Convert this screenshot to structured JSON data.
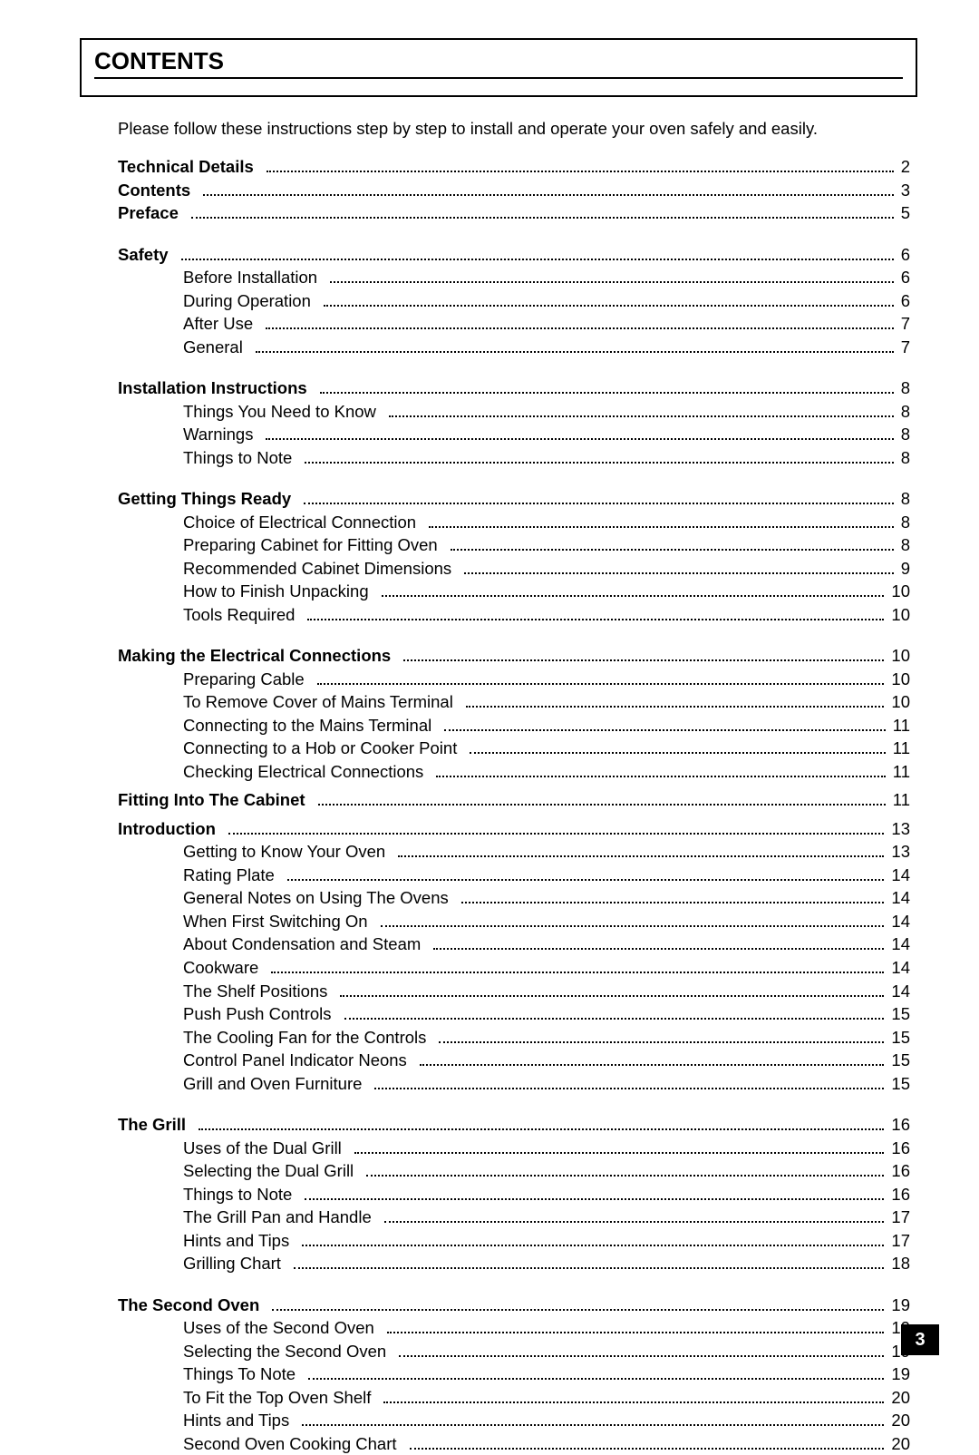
{
  "title": "CONTENTS",
  "intro": "Please follow these instructions step by step to install and operate your oven safely and easily.",
  "page_number": "3",
  "entries": [
    {
      "label": "Technical Details",
      "page": "2",
      "bold": true,
      "sub": false
    },
    {
      "label": "Contents",
      "page": "3",
      "bold": true,
      "sub": false
    },
    {
      "label": "Preface",
      "page": "5",
      "bold": true,
      "sub": false
    },
    {
      "gap": true
    },
    {
      "label": "Safety",
      "page": "6",
      "bold": true,
      "sub": false
    },
    {
      "label": "Before Installation",
      "page": "6",
      "bold": false,
      "sub": true
    },
    {
      "label": "During Operation",
      "page": "6",
      "bold": false,
      "sub": true
    },
    {
      "label": "After Use",
      "page": "7",
      "bold": false,
      "sub": true
    },
    {
      "label": "General",
      "page": "7",
      "bold": false,
      "sub": true
    },
    {
      "gap": true
    },
    {
      "label": "Installation Instructions",
      "page": "8",
      "bold": true,
      "sub": false
    },
    {
      "label": "Things You Need to Know",
      "page": "8",
      "bold": false,
      "sub": true
    },
    {
      "label": "Warnings",
      "page": "8",
      "bold": false,
      "sub": true
    },
    {
      "label": "Things to Note",
      "page": "8",
      "bold": false,
      "sub": true
    },
    {
      "gap": true
    },
    {
      "label": "Getting Things Ready",
      "page": "8",
      "bold": true,
      "sub": false
    },
    {
      "label": "Choice of Electrical Connection",
      "page": "8",
      "bold": false,
      "sub": true
    },
    {
      "label": "Preparing Cabinet for Fitting Oven",
      "page": "8",
      "bold": false,
      "sub": true
    },
    {
      "label": "Recommended Cabinet Dimensions",
      "page": "9",
      "bold": false,
      "sub": true
    },
    {
      "label": "How to Finish Unpacking",
      "page": "10",
      "bold": false,
      "sub": true
    },
    {
      "label": "Tools Required",
      "page": "10",
      "bold": false,
      "sub": true
    },
    {
      "gap": true
    },
    {
      "label": "Making the Electrical Connections",
      "page": "10",
      "bold": true,
      "sub": false
    },
    {
      "label": "Preparing Cable",
      "page": "10",
      "bold": false,
      "sub": true
    },
    {
      "label": "To Remove Cover of Mains Terminal",
      "page": "10",
      "bold": false,
      "sub": true
    },
    {
      "label": "Connecting to the Mains Terminal",
      "page": "11",
      "bold": false,
      "sub": true
    },
    {
      "label": "Connecting to a Hob or Cooker Point",
      "page": "11",
      "bold": false,
      "sub": true
    },
    {
      "label": "Checking Electrical Connections",
      "page": "11",
      "bold": false,
      "sub": true
    },
    {
      "smallgap": true
    },
    {
      "label": "Fitting Into The Cabinet",
      "page": "11",
      "bold": true,
      "sub": false
    },
    {
      "smallgap": true
    },
    {
      "label": "Introduction",
      "page": "13",
      "bold": true,
      "sub": false
    },
    {
      "label": "Getting to Know Your Oven",
      "page": "13",
      "bold": false,
      "sub": true
    },
    {
      "label": "Rating Plate",
      "page": "14",
      "bold": false,
      "sub": true
    },
    {
      "label": "General Notes on Using The Ovens",
      "page": "14",
      "bold": false,
      "sub": true
    },
    {
      "label": "When First Switching On",
      "page": "14",
      "bold": false,
      "sub": true
    },
    {
      "label": "About Condensation and Steam",
      "page": "14",
      "bold": false,
      "sub": true
    },
    {
      "label": "Cookware",
      "page": "14",
      "bold": false,
      "sub": true
    },
    {
      "label": "The Shelf Positions",
      "page": "14",
      "bold": false,
      "sub": true
    },
    {
      "label": "Push Push Controls",
      "page": "15",
      "bold": false,
      "sub": true
    },
    {
      "label": "The Cooling Fan for the Controls",
      "page": "15",
      "bold": false,
      "sub": true
    },
    {
      "label": "Control Panel Indicator Neons",
      "page": "15",
      "bold": false,
      "sub": true
    },
    {
      "label": "Grill and Oven Furniture",
      "page": "15",
      "bold": false,
      "sub": true
    },
    {
      "gap": true
    },
    {
      "label": "The Grill",
      "page": "16",
      "bold": true,
      "sub": false
    },
    {
      "label": "Uses of the Dual Grill",
      "page": "16",
      "bold": false,
      "sub": true
    },
    {
      "label": "Selecting the Dual Grill",
      "page": "16",
      "bold": false,
      "sub": true
    },
    {
      "label": "Things to Note",
      "page": "16",
      "bold": false,
      "sub": true
    },
    {
      "label": "The Grill Pan and Handle",
      "page": "17",
      "bold": false,
      "sub": true
    },
    {
      "label": "Hints and Tips",
      "page": "17",
      "bold": false,
      "sub": true
    },
    {
      "label": "Grilling Chart",
      "page": "18",
      "bold": false,
      "sub": true
    },
    {
      "gap": true
    },
    {
      "label": "The Second Oven",
      "page": "19",
      "bold": true,
      "sub": false
    },
    {
      "label": "Uses of the Second Oven",
      "page": "19",
      "bold": false,
      "sub": true
    },
    {
      "label": "Selecting the Second Oven",
      "page": "19",
      "bold": false,
      "sub": true
    },
    {
      "label": "Things To Note",
      "page": "19",
      "bold": false,
      "sub": true
    },
    {
      "label": "To Fit the Top Oven Shelf",
      "page": "20",
      "bold": false,
      "sub": true
    },
    {
      "label": "Hints and Tips",
      "page": "20",
      "bold": false,
      "sub": true
    },
    {
      "label": "Second Oven Cooking Chart",
      "page": "20",
      "bold": false,
      "sub": true
    }
  ]
}
